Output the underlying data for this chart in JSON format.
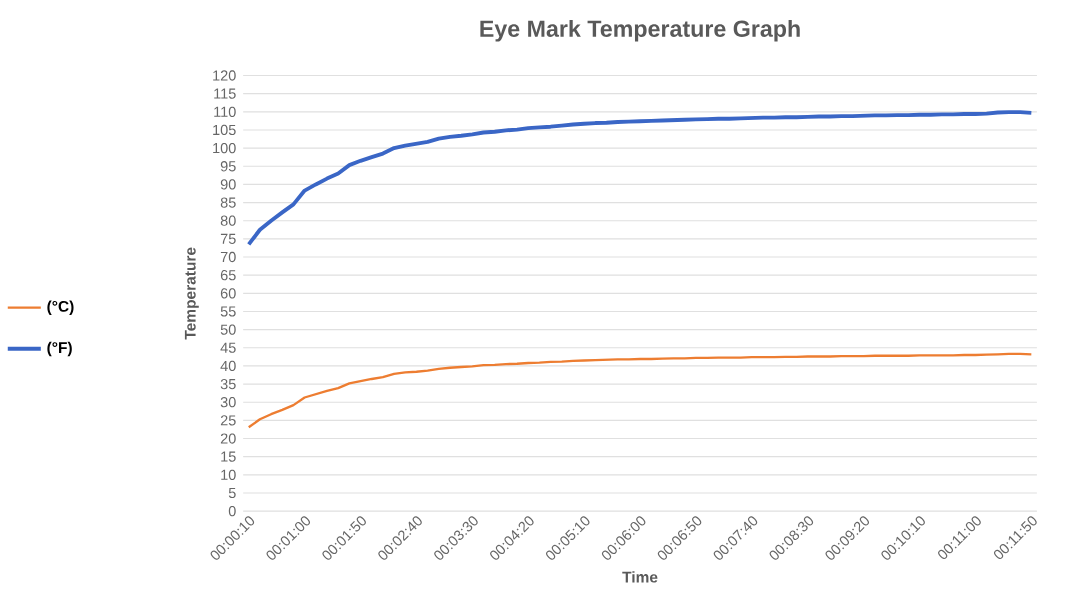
{
  "chart_data": {
    "type": "line",
    "title": "Eye Mark Temperature Graph",
    "xlabel": "Time",
    "ylabel": "Temperature",
    "categories": [
      "00:00:10",
      null,
      null,
      null,
      null,
      "00:01:00",
      null,
      null,
      null,
      null,
      "00:01:50",
      null,
      null,
      null,
      null,
      "00:02:40",
      null,
      null,
      null,
      null,
      "00:03:30",
      null,
      null,
      null,
      null,
      "00:04:20",
      null,
      null,
      null,
      null,
      "00:05:10",
      null,
      null,
      null,
      null,
      "00:06:00",
      null,
      null,
      null,
      null,
      "00:06:50",
      null,
      null,
      null,
      null,
      "00:07:40",
      null,
      null,
      null,
      null,
      "00:08:30",
      null,
      null,
      null,
      null,
      "00:09:20",
      null,
      null,
      null,
      null,
      "00:10:10",
      null,
      null,
      null,
      null,
      "00:11:00",
      null,
      null,
      null,
      null,
      "00:11:50"
    ],
    "series": [
      {
        "name": "(°C)",
        "color": "#ed7d31",
        "values": [
          23.1,
          25.3,
          26.7,
          27.9,
          29.2,
          31.3,
          32.2,
          33.1,
          33.9,
          35.2,
          35.8,
          36.4,
          36.9,
          37.8,
          38.2,
          38.4,
          38.7,
          39.2,
          39.5,
          39.7,
          39.9,
          40.2,
          40.3,
          40.5,
          40.6,
          40.8,
          40.9,
          41.1,
          41.2,
          41.4,
          41.5,
          41.6,
          41.7,
          41.8,
          41.8,
          41.9,
          41.9,
          42.0,
          42.1,
          42.1,
          42.2,
          42.2,
          42.3,
          42.3,
          42.3,
          42.4,
          42.4,
          42.4,
          42.5,
          42.5,
          42.6,
          42.6,
          42.6,
          42.7,
          42.7,
          42.7,
          42.8,
          42.8,
          42.8,
          42.8,
          42.9,
          42.9,
          42.9,
          42.9,
          43.0,
          43.0,
          43.1,
          43.2,
          43.3,
          43.3,
          43.2
        ]
      },
      {
        "name": "(°F)",
        "color": "#3a66c6",
        "values": [
          73.5,
          77.5,
          80,
          82.3,
          84.5,
          88.3,
          90,
          91.6,
          93,
          95.3,
          96.5,
          97.5,
          98.5,
          100,
          100.7,
          101.2,
          101.7,
          102.6,
          103.1,
          103.4,
          103.8,
          104.3,
          104.5,
          104.9,
          105.1,
          105.5,
          105.7,
          105.9,
          106.2,
          106.5,
          106.7,
          106.9,
          107.0,
          107.2,
          107.3,
          107.4,
          107.5,
          107.6,
          107.7,
          107.8,
          107.9,
          108.0,
          108.1,
          108.1,
          108.2,
          108.3,
          108.4,
          108.4,
          108.5,
          108.5,
          108.6,
          108.7,
          108.7,
          108.8,
          108.8,
          108.9,
          109.0,
          109.0,
          109.1,
          109.1,
          109.2,
          109.2,
          109.3,
          109.3,
          109.4,
          109.4,
          109.5,
          109.8,
          109.9,
          109.9,
          109.7
        ]
      }
    ],
    "ylim": [
      0,
      120
    ],
    "yticks": [
      0,
      5,
      10,
      15,
      20,
      25,
      30,
      35,
      40,
      45,
      50,
      55,
      60,
      65,
      70,
      75,
      80,
      85,
      90,
      95,
      100,
      105,
      110,
      115,
      120
    ],
    "grid": "y",
    "legend": "left",
    "marker": "none",
    "line_style": "solid"
  }
}
